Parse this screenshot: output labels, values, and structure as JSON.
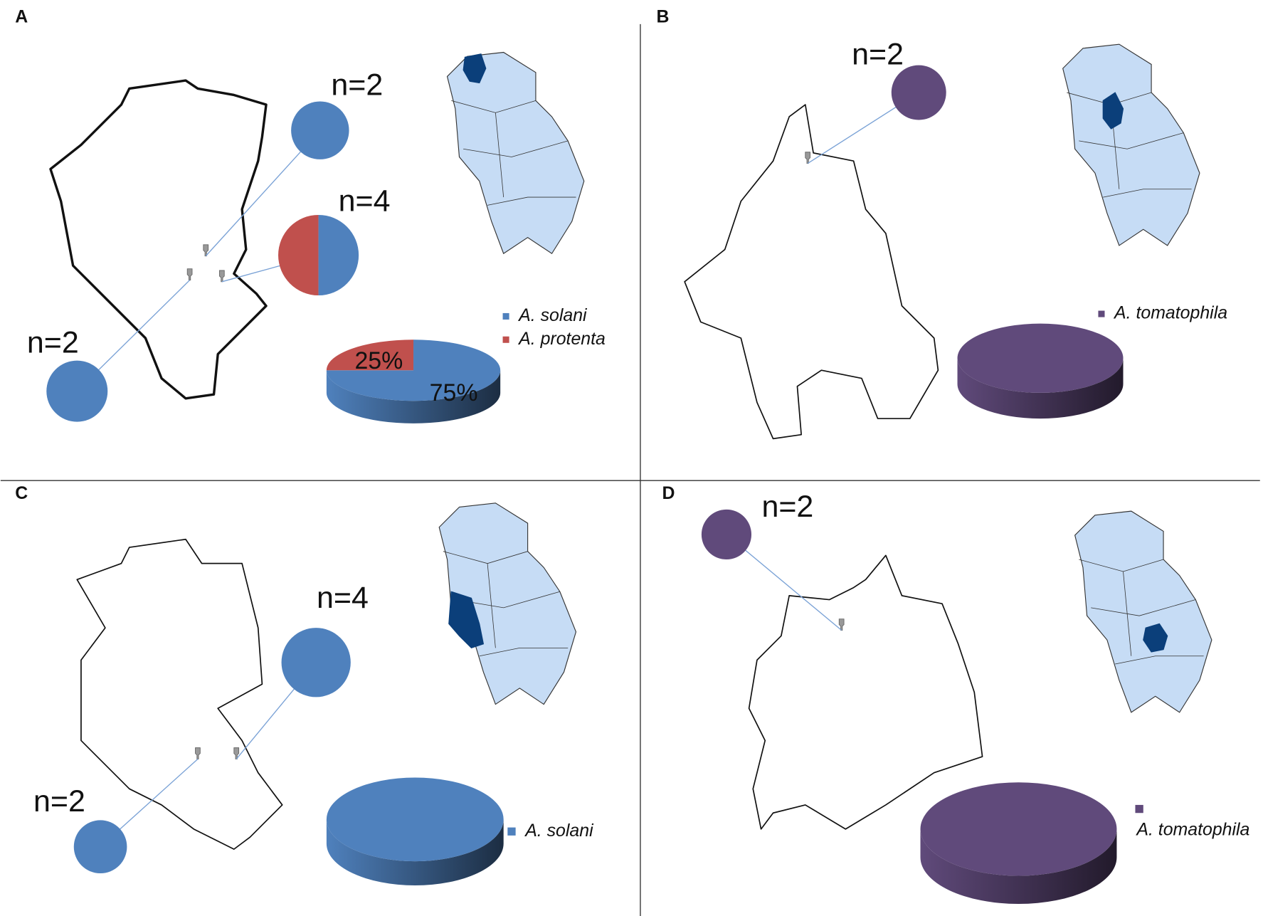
{
  "panels": [
    {
      "label": "A",
      "samples": [
        {
          "label": "n=2",
          "colors": [
            "#4f81bd"
          ]
        },
        {
          "label": "n=4",
          "colors": [
            "#c0504d",
            "#4f81bd"
          ]
        },
        {
          "label": "n=2",
          "colors": [
            "#4f81bd"
          ]
        }
      ],
      "pie": {
        "series": [
          {
            "name": "A. solani",
            "color": "#4f81bd",
            "value": 75,
            "value_label": "75%"
          },
          {
            "name": "A. protenta",
            "color": "#c0504d",
            "value": 25,
            "value_label": "25%"
          }
        ]
      }
    },
    {
      "label": "B",
      "samples": [
        {
          "label": "n=2",
          "colors": [
            "#604a7b"
          ]
        }
      ],
      "pie": {
        "series": [
          {
            "name": "A. tomatophila",
            "color": "#604a7b",
            "value": 100
          }
        ]
      }
    },
    {
      "label": "C",
      "samples": [
        {
          "label": "n=4",
          "colors": [
            "#4f81bd"
          ]
        },
        {
          "label": "n=2",
          "colors": [
            "#4f81bd"
          ]
        }
      ],
      "pie": {
        "series": [
          {
            "name": "A. solani",
            "color": "#4f81bd",
            "value": 100
          }
        ]
      }
    },
    {
      "label": "D",
      "samples": [
        {
          "label": "n=2",
          "colors": [
            "#604a7b"
          ]
        }
      ],
      "pie": {
        "series": [
          {
            "name": "A. tomatophila",
            "color": "#604a7b",
            "value": 100
          }
        ]
      }
    }
  ]
}
